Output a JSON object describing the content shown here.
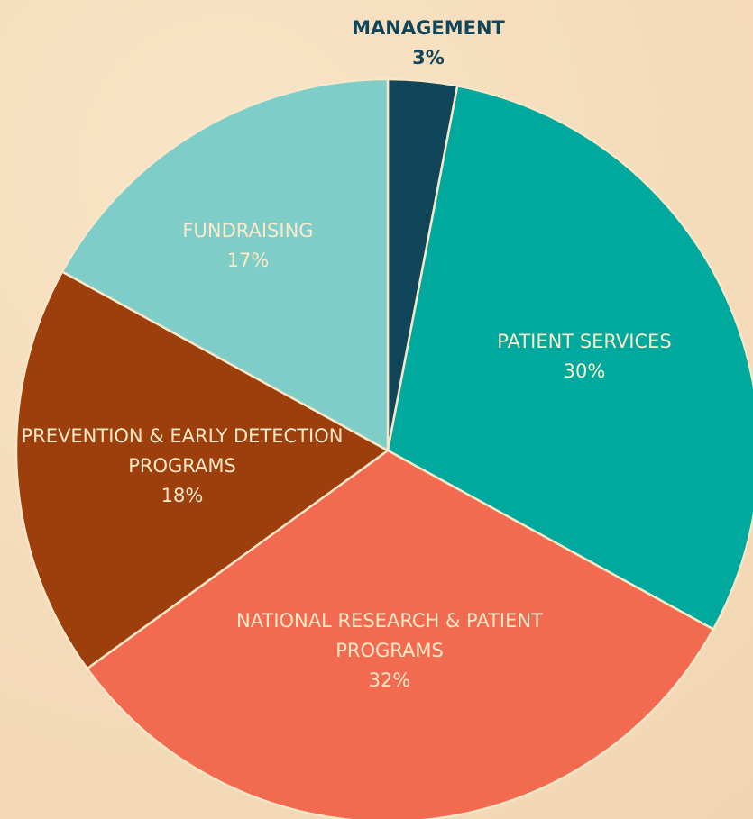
{
  "chart_data": {
    "type": "pie",
    "categories": [
      "MANAGEMENT",
      "PATIENT SERVICES",
      "NATIONAL RESEARCH & PATIENT PROGRAMS",
      "PREVENTION & EARLY DETECTION PROGRAMS",
      "FUNDRAISING"
    ],
    "values": [
      3,
      30,
      32,
      18,
      17
    ],
    "value_labels": [
      "3%",
      "30%",
      "32%",
      "18%",
      "17%"
    ],
    "colors": [
      "#11465a",
      "#00a99d",
      "#f26b50",
      "#9c3f0c",
      "#7fcdc8"
    ]
  }
}
